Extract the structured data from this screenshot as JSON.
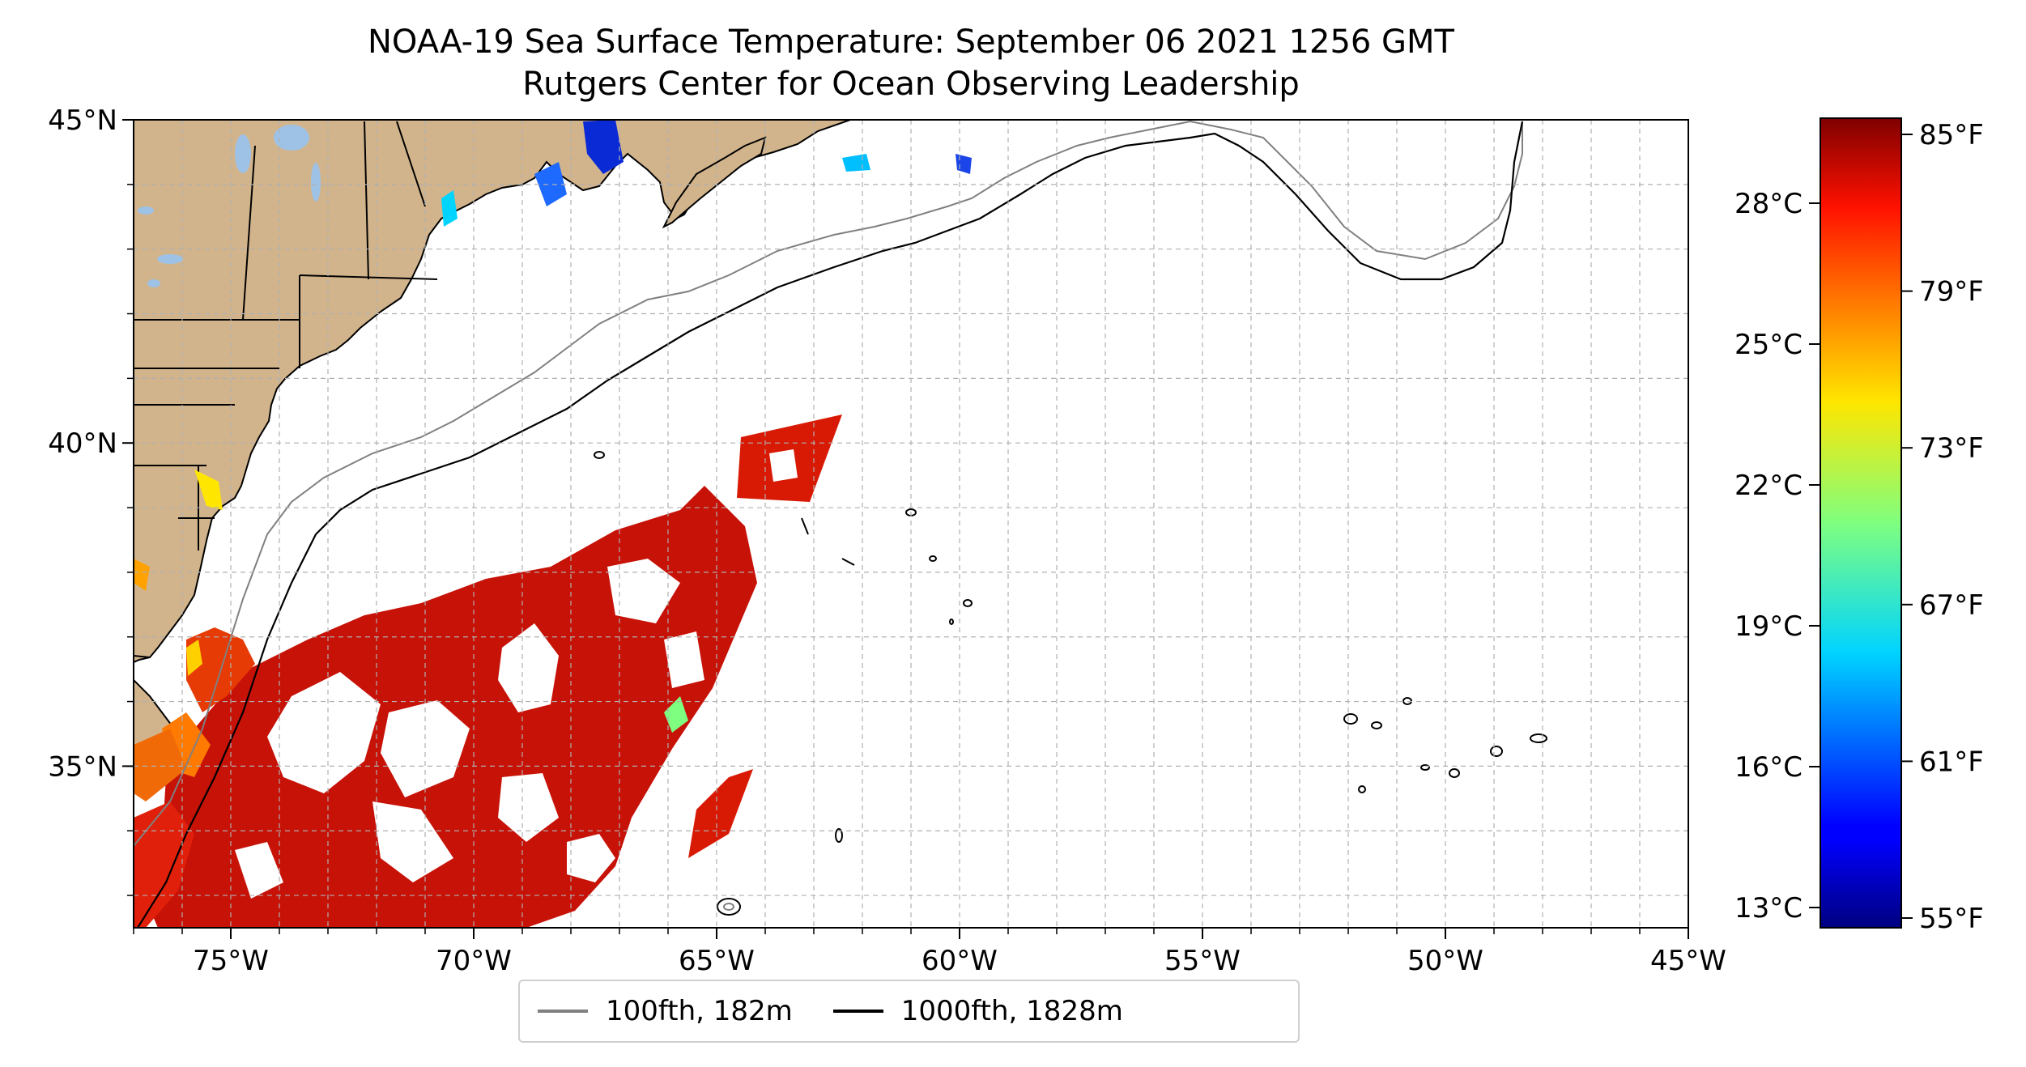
{
  "title": {
    "line1": "NOAA-19 Sea Surface Temperature: September 06 2021 1256 GMT",
    "line2": "Rutgers Center for Ocean Observing Leadership"
  },
  "map": {
    "lon_range": [
      -77,
      -45
    ],
    "lat_range": [
      32.5,
      45
    ],
    "lon_ticks": [
      {
        "value": -75,
        "label": "75°W"
      },
      {
        "value": -70,
        "label": "70°W"
      },
      {
        "value": -65,
        "label": "65°W"
      },
      {
        "value": -60,
        "label": "60°W"
      },
      {
        "value": -55,
        "label": "55°W"
      },
      {
        "value": -50,
        "label": "50°W"
      },
      {
        "value": -45,
        "label": "45°W"
      }
    ],
    "lat_ticks": [
      {
        "value": 45,
        "label": "45°N"
      },
      {
        "value": 40,
        "label": "40°N"
      },
      {
        "value": 35,
        "label": "35°N"
      }
    ],
    "grid": true,
    "colors": {
      "land": "#d2b48c",
      "lakes": "#9ec2e6",
      "ocean": "#ffffff"
    }
  },
  "colorbar": {
    "colormap": "jet",
    "celsius_ticks": [
      "28°C",
      "25°C",
      "22°C",
      "19°C",
      "16°C",
      "13°C"
    ],
    "fahrenheit_ticks": [
      "85°F",
      "79°F",
      "73°F",
      "67°F",
      "61°F",
      "55°F"
    ]
  },
  "legend": {
    "items": [
      {
        "label": "100fth, 182m",
        "color": "#808080"
      },
      {
        "label": "1000fth, 1828m",
        "color": "#000000"
      }
    ]
  }
}
